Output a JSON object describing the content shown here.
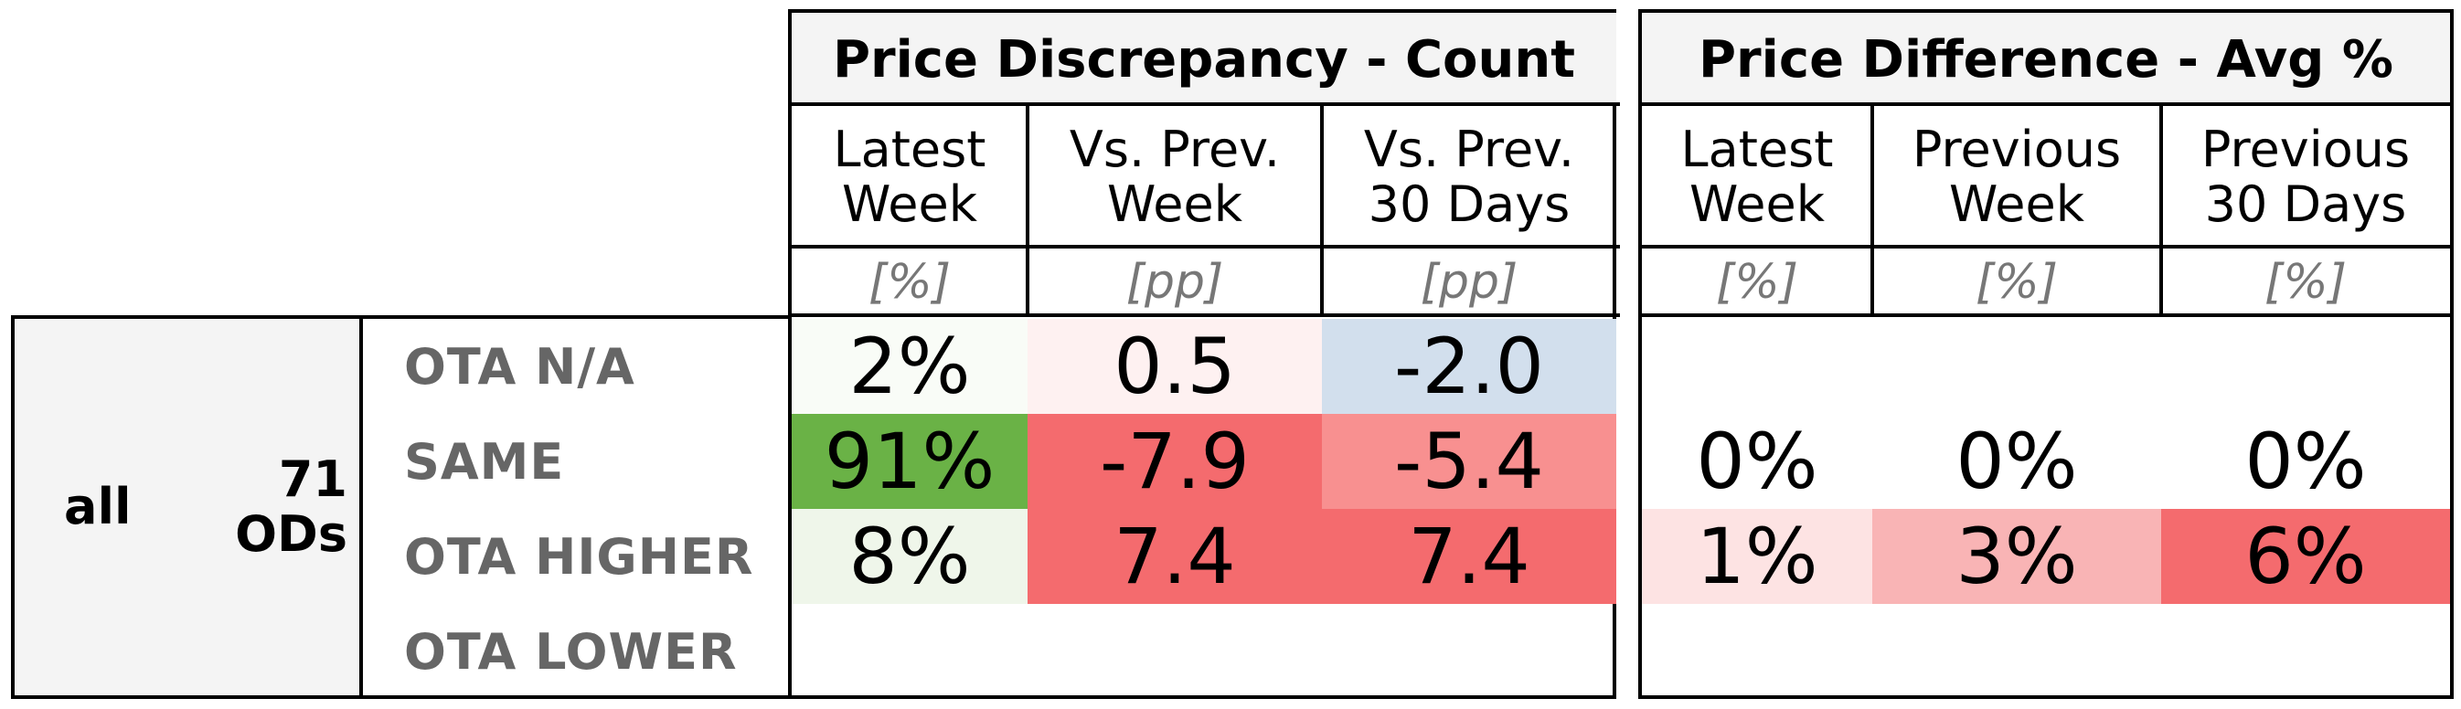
{
  "chart_data": {
    "type": "table",
    "panels": [
      {
        "title": "Price Discrepancy - Count",
        "columns": [
          {
            "label": "Latest\nWeek",
            "unit": "[%]"
          },
          {
            "label": "Vs. Prev.\nWeek",
            "unit": "[pp]"
          },
          {
            "label": "Vs. Prev.\n30 Days",
            "unit": "[pp]"
          }
        ],
        "rows": [
          {
            "label": "OTA N/A",
            "values": [
              "2%",
              "0.5",
              "-2.0"
            ],
            "colors": [
              "#f9fcf7",
              "#fef1f1",
              "#d2dfed"
            ]
          },
          {
            "label": "SAME",
            "values": [
              "91%",
              "-7.9",
              "-5.4"
            ],
            "colors": [
              "#6ab246",
              "#f46b6e",
              "#f89090"
            ]
          },
          {
            "label": "OTA HIGHER",
            "values": [
              "8%",
              "7.4",
              "7.4"
            ],
            "colors": [
              "#eff6ea",
              "#f46b6e",
              "#f46b6e"
            ]
          },
          {
            "label": "OTA LOWER",
            "values": [
              "",
              "",
              ""
            ],
            "colors": [
              "",
              "",
              ""
            ]
          }
        ]
      },
      {
        "title": "Price Difference - Avg %",
        "columns": [
          {
            "label": "Latest\nWeek",
            "unit": "[%]"
          },
          {
            "label": "Previous\nWeek",
            "unit": "[%]"
          },
          {
            "label": "Previous\n30 Days",
            "unit": "[%]"
          }
        ],
        "rows": [
          {
            "values": [
              "",
              "",
              ""
            ],
            "colors": [
              "",
              "",
              ""
            ]
          },
          {
            "values": [
              "0%",
              "0%",
              "0%"
            ],
            "colors": [
              "",
              "",
              ""
            ]
          },
          {
            "values": [
              "1%",
              "3%",
              "6%"
            ],
            "colors": [
              "#fde3e3",
              "#f9b4b5",
              "#f46b6e"
            ]
          },
          {
            "values": [
              "",
              "",
              ""
            ],
            "colors": [
              "",
              "",
              ""
            ]
          }
        ]
      }
    ],
    "group": {
      "segment": "all",
      "count_label": "71\nODs"
    }
  }
}
